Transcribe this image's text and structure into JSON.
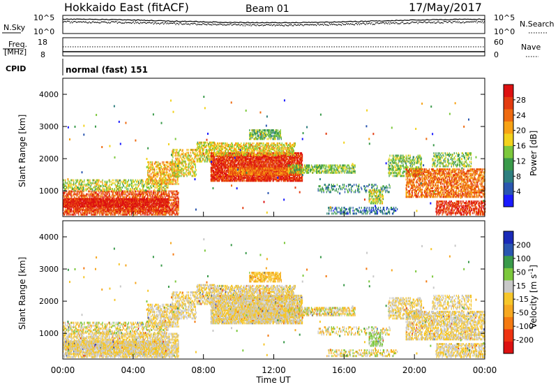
{
  "header": {
    "radar": "Hokkaido East (fitACF)",
    "beam": "Beam 01",
    "date": "17/May/2017"
  },
  "param_panels": {
    "nsky_label": "N.Sky",
    "nsky_ticks": [
      "10^5",
      "10^0"
    ],
    "nsearch_label": "N.Search",
    "freq_label_1": "Freq.",
    "freq_label_2": "[MHz]",
    "freq_ticks": [
      "18",
      "8"
    ],
    "nave_label": "Nave",
    "nave_ticks": [
      "60",
      "0"
    ],
    "cpid_label": "CPID",
    "cpid_text": "normal (fast) 151"
  },
  "colors": {
    "power": [
      "#1a1aff",
      "#2a56b0",
      "#2e7f7f",
      "#3a9a4a",
      "#7cc83c",
      "#f2d21c",
      "#f7a215",
      "#ee6a10",
      "#e33b10",
      "#dd1111"
    ],
    "velocity": [
      "#dd1111",
      "#ee3311",
      "#f47a11",
      "#f6a821",
      "#f6c62a",
      "#c8c8c8",
      "#7cc83c",
      "#3a9a4a",
      "#2a56b0",
      "#1a2ab8"
    ]
  },
  "chart_data": [
    {
      "type": "heatmap",
      "name": "power",
      "ylabel": "Slant Range [km]",
      "ylim": [
        200,
        4500
      ],
      "yticks": [
        "1000",
        "2000",
        "3000",
        "4000"
      ],
      "xlim": [
        "00:00",
        "24:00"
      ],
      "colorbar_label": "Power [dB]",
      "colorbar_ticks": [
        "4",
        "8",
        "12",
        "16",
        "20",
        "24",
        "28"
      ],
      "colorbar_range": [
        0,
        32
      ]
    },
    {
      "type": "heatmap",
      "name": "velocity",
      "ylabel": "Slant Range [km]",
      "ylim": [
        200,
        4500
      ],
      "yticks": [
        "1000",
        "2000",
        "3000",
        "4000"
      ],
      "xlim": [
        "00:00",
        "24:00"
      ],
      "xticks": [
        "00:00",
        "04:00",
        "08:00",
        "12:00",
        "16:00",
        "20:00",
        "00:00"
      ],
      "xlabel": "Time UT",
      "colorbar_label": "Velocity [m s^-1]",
      "colorbar_ticks": [
        "200",
        "100",
        "50",
        "15",
        "-15",
        "-50",
        "-100",
        "-200"
      ],
      "colorbar_range": [
        -250,
        250
      ]
    }
  ]
}
